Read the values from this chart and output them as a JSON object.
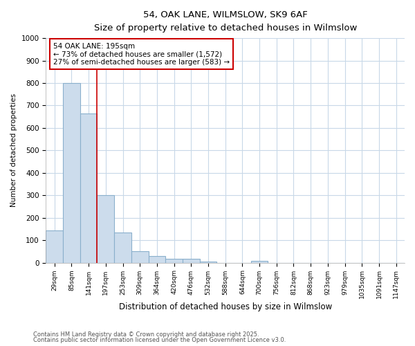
{
  "title1": "54, OAK LANE, WILMSLOW, SK9 6AF",
  "title2": "Size of property relative to detached houses in Wilmslow",
  "xlabel": "Distribution of detached houses by size in Wilmslow",
  "ylabel": "Number of detached properties",
  "bin_labels": [
    "29sqm",
    "85sqm",
    "141sqm",
    "197sqm",
    "253sqm",
    "309sqm",
    "364sqm",
    "420sqm",
    "476sqm",
    "532sqm",
    "588sqm",
    "644sqm",
    "700sqm",
    "756sqm",
    "812sqm",
    "868sqm",
    "923sqm",
    "979sqm",
    "1035sqm",
    "1091sqm",
    "1147sqm"
  ],
  "bar_heights": [
    143,
    800,
    665,
    300,
    135,
    52,
    30,
    16,
    16,
    5,
    0,
    0,
    8,
    0,
    0,
    0,
    0,
    0,
    0,
    0,
    0
  ],
  "bar_color": "#ccdcec",
  "bar_edge_color": "#8ab0cc",
  "annotation_title": "54 OAK LANE: 195sqm",
  "annotation_line1": "← 73% of detached houses are smaller (1,572)",
  "annotation_line2": "27% of semi-detached houses are larger (583) →",
  "annotation_box_color": "#ffffff",
  "annotation_box_edge": "#cc0000",
  "line_color": "#cc0000",
  "ylim": [
    0,
    1000
  ],
  "yticks": [
    0,
    100,
    200,
    300,
    400,
    500,
    600,
    700,
    800,
    900,
    1000
  ],
  "footer1": "Contains HM Land Registry data © Crown copyright and database right 2025.",
  "footer2": "Contains public sector information licensed under the Open Government Licence v3.0.",
  "bg_color": "#ffffff",
  "plot_bg_color": "#ffffff",
  "grid_color": "#c8d8e8"
}
